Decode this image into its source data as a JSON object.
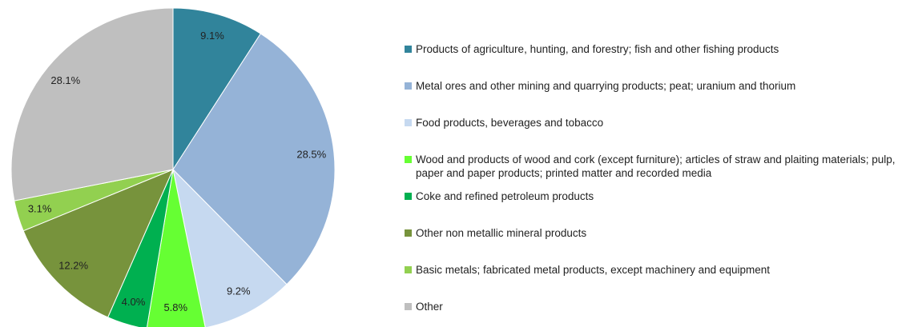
{
  "chart_data": {
    "type": "pie",
    "categories": [
      "Products of agriculture, hunting, and forestry; fish and other fishing products",
      "Metal ores and other mining and quarrying products; peat; uranium and thorium",
      "Food products, beverages and tobacco",
      "Wood and products of wood and cork (except furniture); articles of straw and plaiting materials; pulp, paper and paper products; printed matter and recorded media",
      "Coke and refined petroleum products",
      "Other non metallic mineral products",
      "Basic metals; fabricated metal products, except machinery and equipment",
      "Other"
    ],
    "values": [
      9.1,
      28.5,
      9.2,
      5.8,
      4.0,
      12.2,
      3.1,
      28.1
    ],
    "value_labels": [
      "9.1%",
      "28.5%",
      "9.2%",
      "5.8%",
      "4.0%",
      "12.2%",
      "3.1%",
      "28.1%"
    ],
    "colors": [
      "#31849b",
      "#95b3d7",
      "#c6d9f0",
      "#66ff33",
      "#00b050",
      "#77933c",
      "#92d050",
      "#bfbfbf"
    ]
  }
}
